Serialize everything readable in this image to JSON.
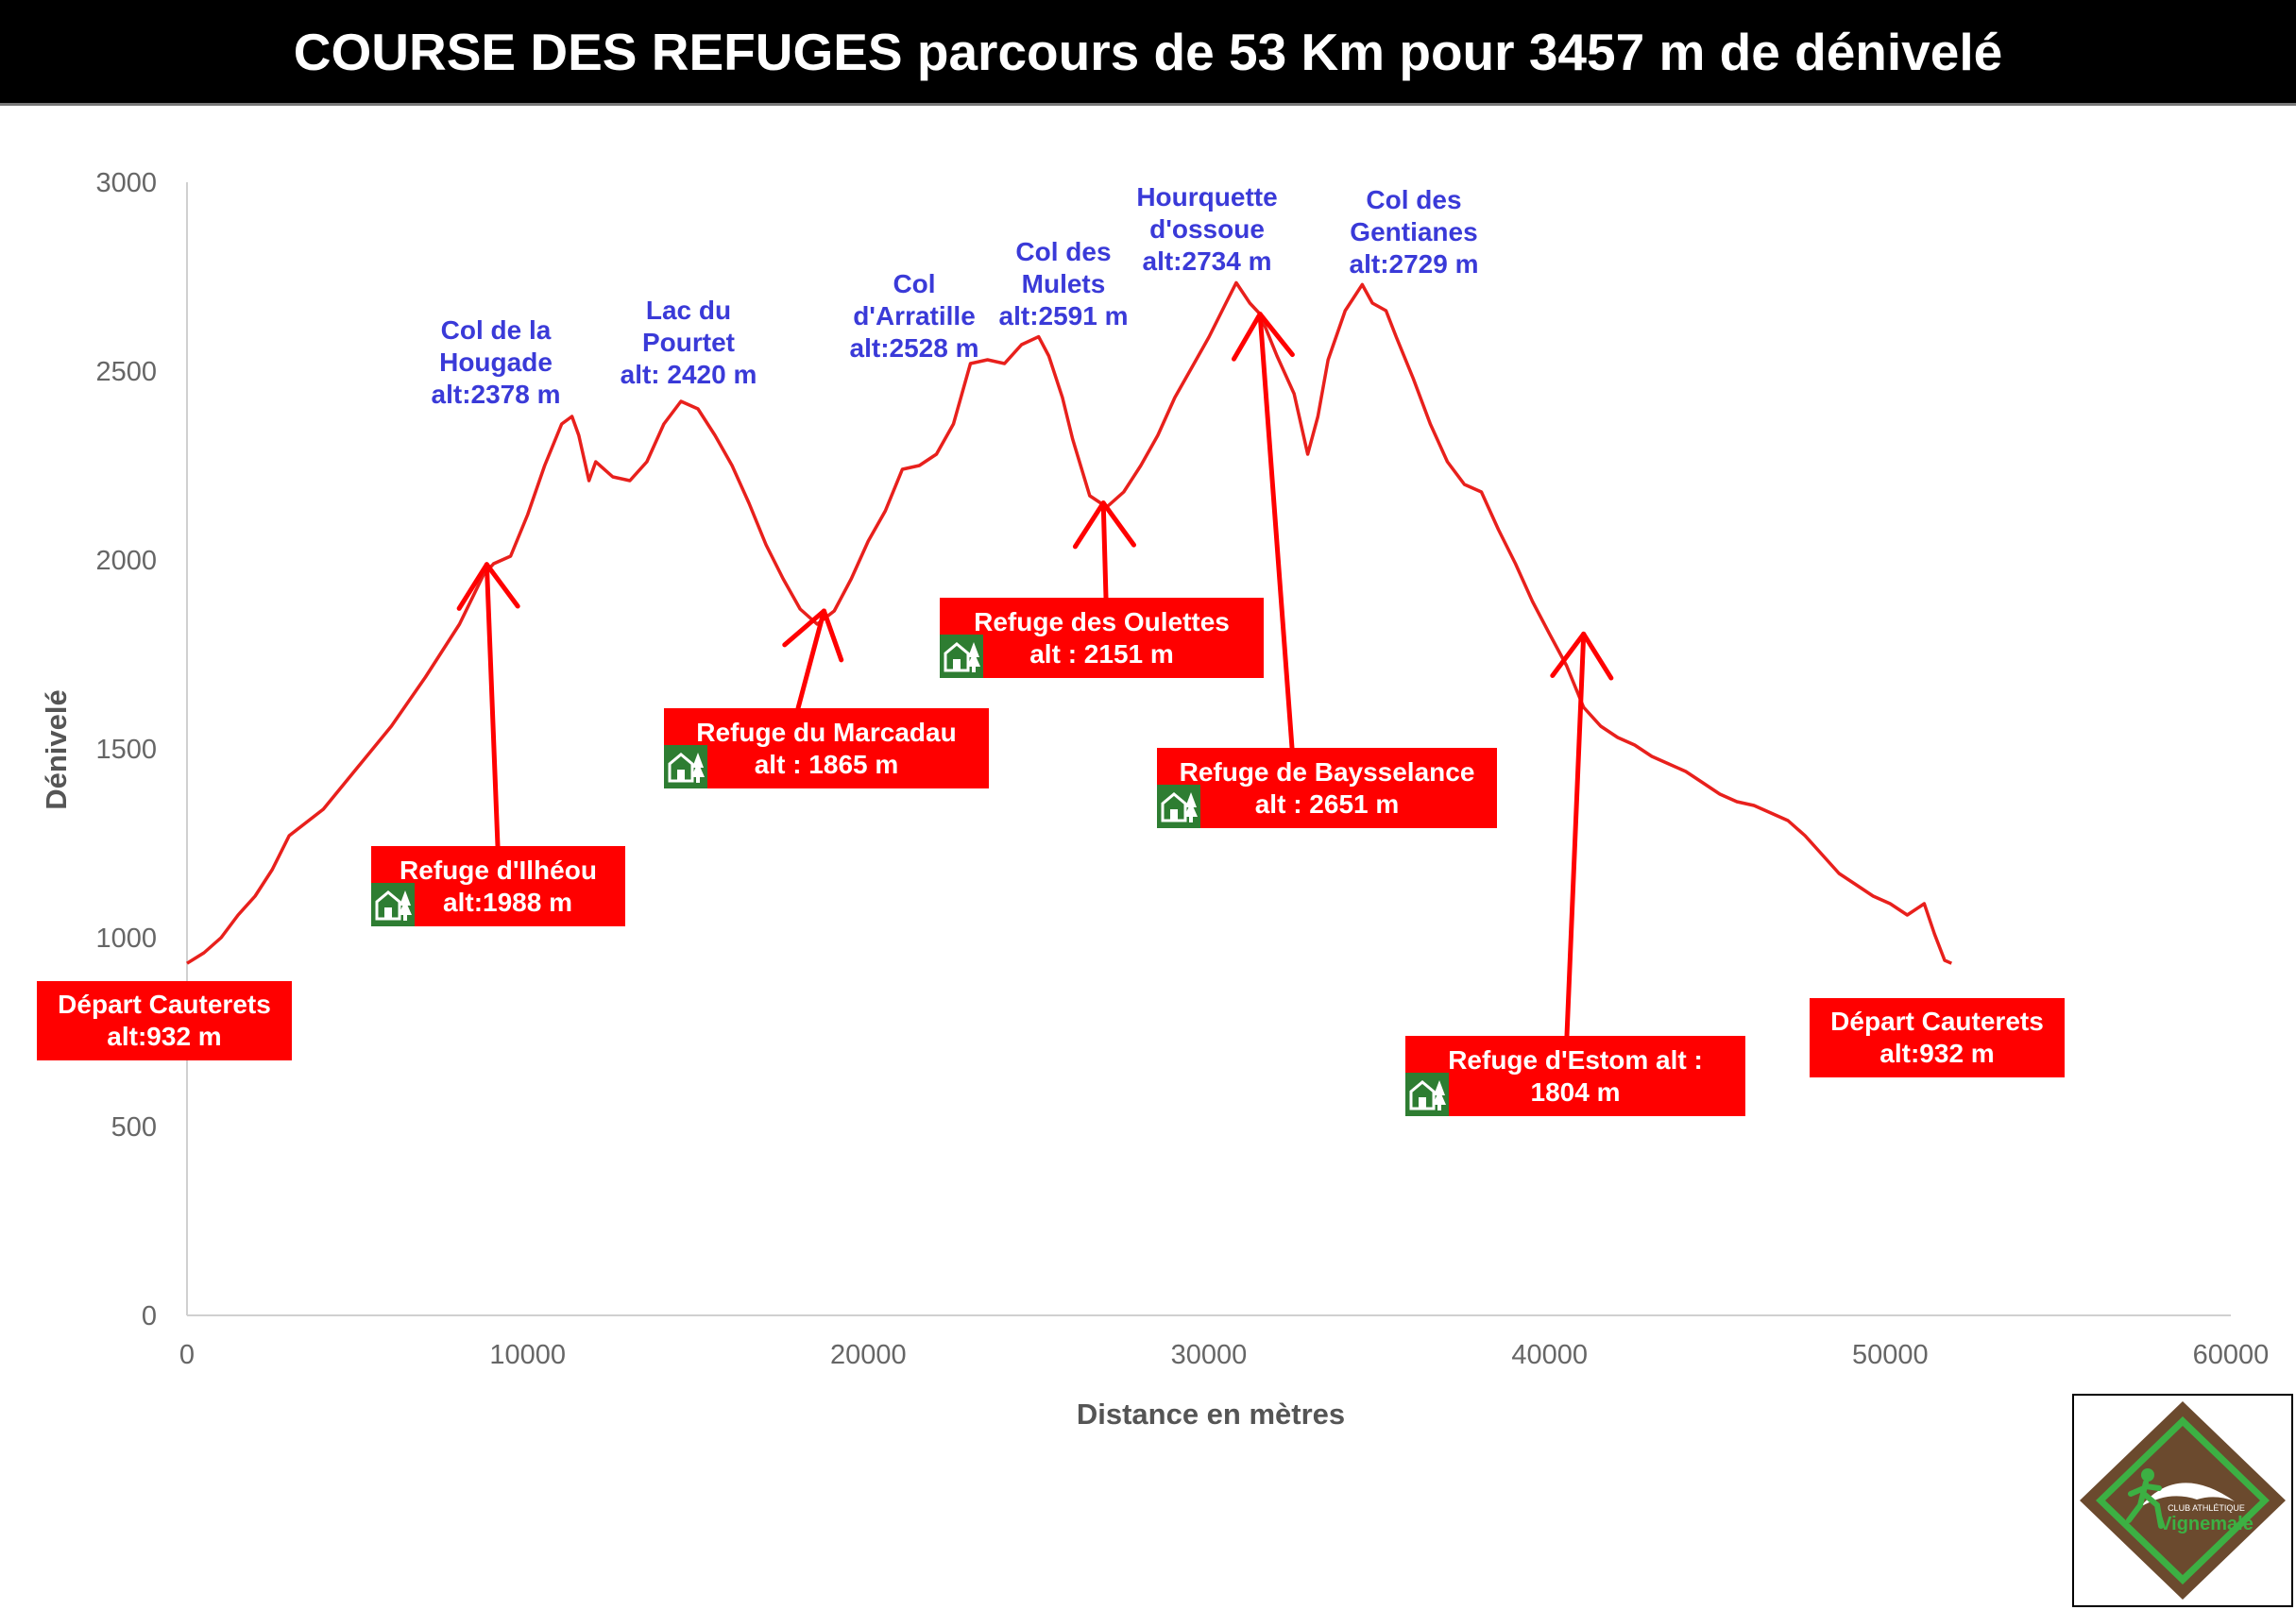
{
  "title": "COURSE DES REFUGES parcours de 53 Km pour 3457 m de dénivelé",
  "chart_data": {
    "type": "line",
    "title": "COURSE DES REFUGES parcours de 53 Km pour 3457 m de dénivelé",
    "xlabel": "Distance en mètres",
    "ylabel": "Dénivelé",
    "xlim": [
      0,
      60000
    ],
    "ylim": [
      0,
      3000
    ],
    "x_ticks": [
      0,
      10000,
      20000,
      30000,
      40000,
      50000,
      60000
    ],
    "y_ticks": [
      0,
      500,
      1000,
      1500,
      2000,
      2500,
      3000
    ],
    "x_tick_labels": [
      "0",
      "10000",
      "20000",
      "30000",
      "40000",
      "50000",
      "60000"
    ],
    "y_tick_labels": [
      "0",
      "500",
      "1000",
      "1500",
      "2000",
      "2500",
      "3000"
    ],
    "grid": false,
    "line_color": "#e8201c",
    "series": [
      {
        "x": [
          0,
          500,
          1000,
          1500,
          2000,
          2500,
          3000,
          4000,
          5000,
          6000,
          7000,
          8000,
          8700,
          9000,
          9500,
          10000,
          10500,
          11000,
          11300,
          11500,
          11800,
          12000,
          12500,
          13000,
          13500,
          14000,
          14500,
          15000,
          15500,
          16000,
          16500,
          17000,
          17500,
          18000,
          18500,
          19000,
          19500,
          20000,
          20500,
          21000,
          21500,
          22000,
          22500,
          23000,
          23500,
          24000,
          24500,
          25000,
          25300,
          25700,
          26000,
          26500,
          27000,
          27500,
          28000,
          28500,
          29000,
          29500,
          30000,
          30500,
          30800,
          31200,
          31500,
          32000,
          32500,
          32900,
          33200,
          33500,
          34000,
          34500,
          34800,
          35200,
          35500,
          36000,
          36500,
          37000,
          37500,
          38000,
          38500,
          39000,
          39500,
          40000,
          40500,
          41000,
          41500,
          42000,
          42500,
          43000,
          43500,
          44000,
          44500,
          45000,
          45500,
          46000,
          46500,
          47000,
          47500,
          48000,
          48500,
          49000,
          49500,
          50000,
          50500,
          51000,
          51300,
          51600,
          51800
        ],
        "y": [
          932,
          960,
          1000,
          1060,
          1110,
          1180,
          1270,
          1340,
          1450,
          1560,
          1690,
          1830,
          1960,
          1990,
          2010,
          2120,
          2250,
          2360,
          2380,
          2330,
          2210,
          2260,
          2220,
          2210,
          2260,
          2360,
          2420,
          2400,
          2330,
          2250,
          2150,
          2040,
          1950,
          1870,
          1830,
          1865,
          1950,
          2050,
          2130,
          2240,
          2250,
          2280,
          2360,
          2520,
          2530,
          2520,
          2570,
          2591,
          2540,
          2430,
          2320,
          2170,
          2140,
          2180,
          2250,
          2330,
          2430,
          2510,
          2590,
          2680,
          2734,
          2680,
          2651,
          2540,
          2440,
          2280,
          2380,
          2530,
          2660,
          2729,
          2680,
          2660,
          2590,
          2480,
          2360,
          2260,
          2200,
          2180,
          2080,
          1990,
          1890,
          1804,
          1720,
          1610,
          1560,
          1530,
          1510,
          1480,
          1460,
          1440,
          1410,
          1380,
          1360,
          1350,
          1330,
          1310,
          1270,
          1220,
          1170,
          1140,
          1110,
          1090,
          1060,
          1090,
          1010,
          940,
          932
        ]
      }
    ]
  },
  "annotations": {
    "peaks": [
      {
        "label": "Col de la\nHougade\nalt:2378 m"
      },
      {
        "label": "Lac du\nPourtet\nalt: 2420 m"
      },
      {
        "label": "Col\nd'Arratille\nalt:2528 m"
      },
      {
        "label": "Col des\nMulets\nalt:2591 m"
      },
      {
        "label": "Hourquette\nd'ossoue\nalt:2734 m"
      },
      {
        "label": "Col des\nGentianes\nalt:2729 m"
      }
    ],
    "refuges": [
      {
        "line1": "Refuge d'Ilhéou",
        "line2": "alt:1988 m"
      },
      {
        "line1": "Refuge du Marcadau",
        "line2": "alt : 1865 m"
      },
      {
        "line1": "Refuge des Oulettes",
        "line2": "alt : 2151 m"
      },
      {
        "line1": "Refuge de Baysselance",
        "line2": "alt : 2651 m"
      },
      {
        "line1": "Refuge d'Estom alt :",
        "line2": "1804 m"
      }
    ],
    "start": {
      "line1": "Départ Cauterets",
      "line2": "alt:932 m"
    },
    "finish": {
      "line1": "Départ Cauterets",
      "line2": "alt:932 m"
    },
    "annotation_color": "#ff0000",
    "peak_label_color": "#3a3ad8",
    "hut_icon_color": "#2e7d32"
  },
  "logo": {
    "text_club": "CLUB ATHLÉTIQUE",
    "text_name": "Vignemale",
    "border_color": "#6b4a2e",
    "accent_color": "#3cb043"
  }
}
